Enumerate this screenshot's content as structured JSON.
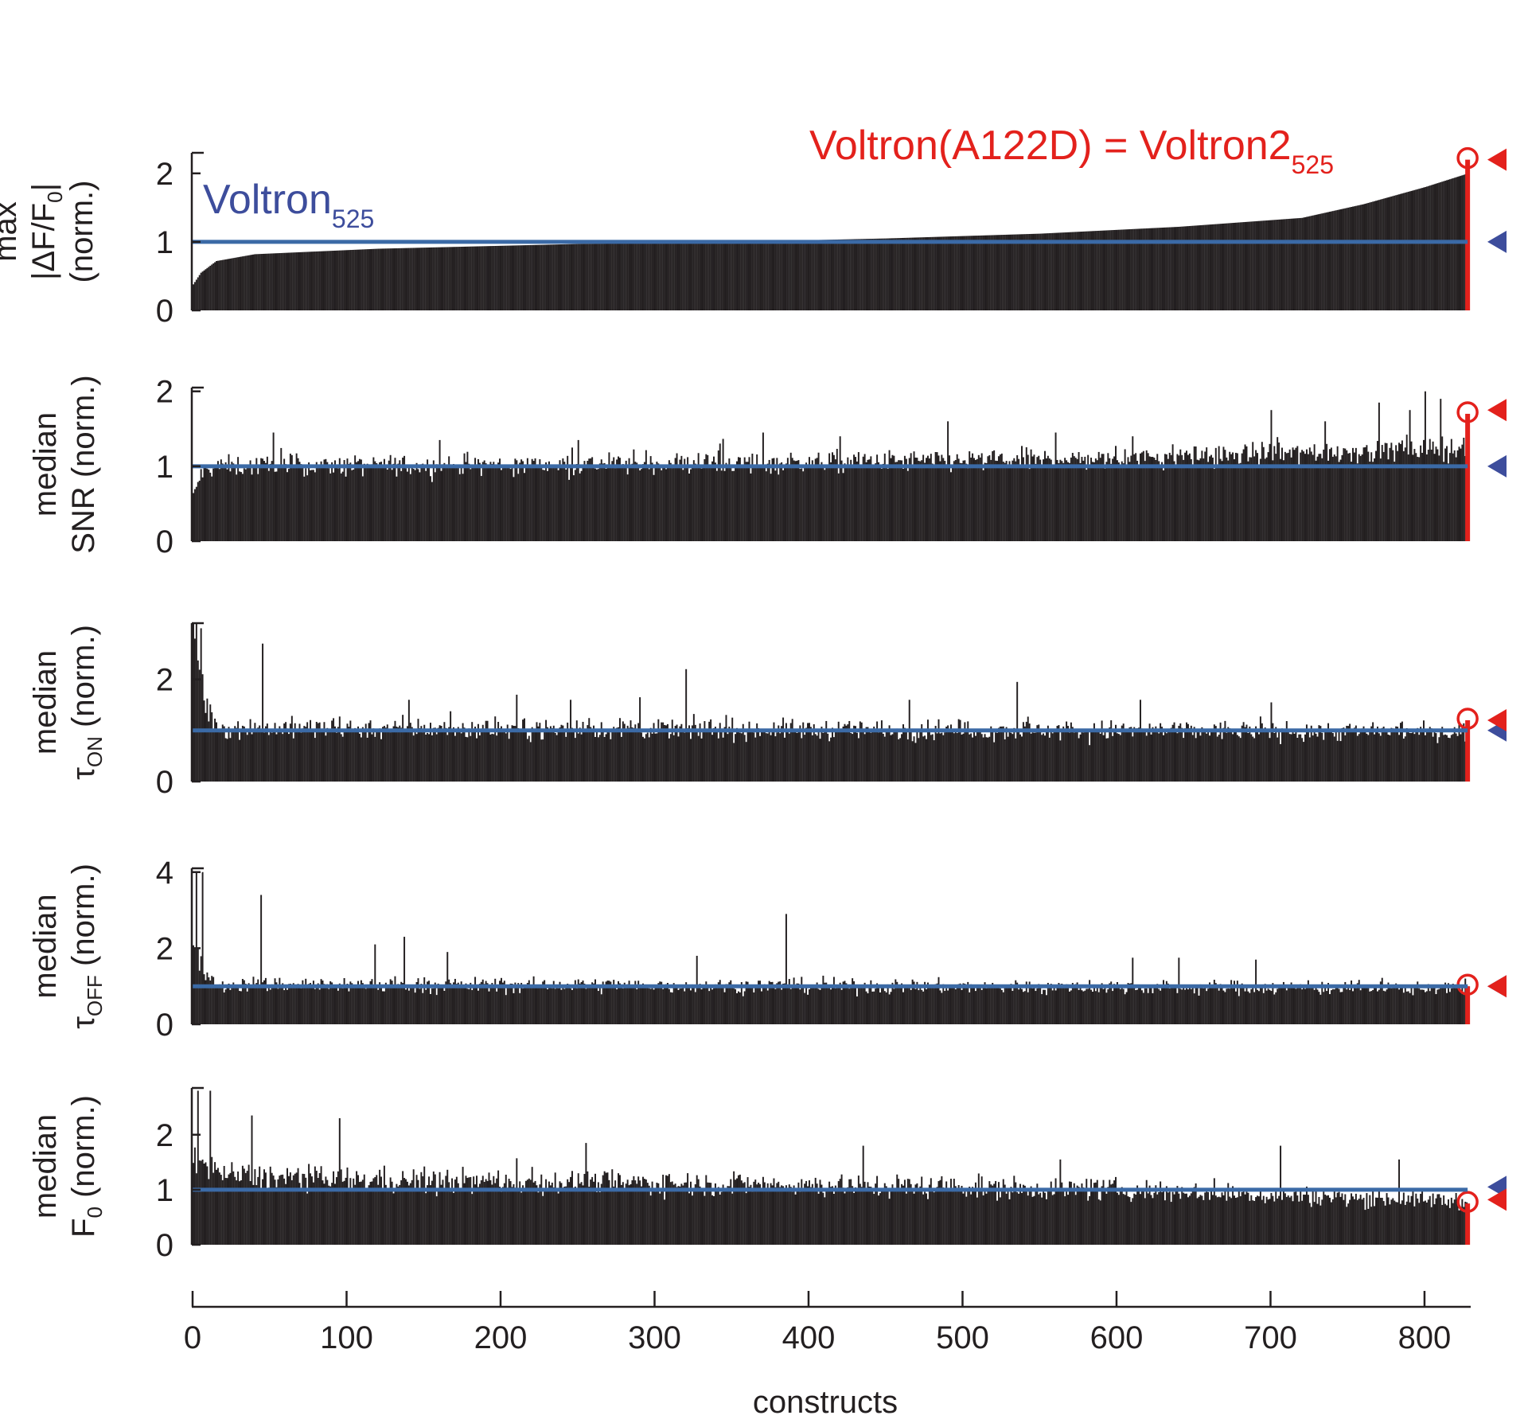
{
  "chart_data": {
    "type": "bar",
    "x_label": "constructs",
    "x_ticks": [
      0,
      100,
      200,
      300,
      400,
      500,
      600,
      700,
      800
    ],
    "x_range": [
      0,
      830
    ],
    "n_constructs": 828,
    "reference_line_value": 1,
    "annotations": {
      "reference": {
        "base": "Voltron",
        "sub": "525"
      },
      "highlight": {
        "base": "Voltron(A122D) = Voltron2",
        "sub": "525"
      }
    },
    "colors": {
      "bars": "#231f20",
      "reference": "#3d4d9c",
      "reference_line": "#3b6aa6",
      "highlight": "#e3211c"
    },
    "panels": [
      {
        "label_line1": "max",
        "label_line2_parts": [
          "|ΔF/F",
          "0",
          "|"
        ],
        "label_line3": "(norm.)",
        "y_ticks": [
          0,
          1,
          2
        ],
        "y_range": [
          0,
          2.3
        ],
        "sorted": true,
        "trend": [
          [
            0,
            0.38
          ],
          [
            5,
            0.55
          ],
          [
            15,
            0.72
          ],
          [
            40,
            0.82
          ],
          [
            120,
            0.9
          ],
          [
            250,
            0.97
          ],
          [
            350,
            1.0
          ],
          [
            450,
            1.05
          ],
          [
            550,
            1.12
          ],
          [
            640,
            1.22
          ],
          [
            720,
            1.35
          ],
          [
            760,
            1.55
          ],
          [
            800,
            1.8
          ],
          [
            828,
            2.0
          ]
        ],
        "noise": 0.0,
        "spikes": [],
        "highlight_value": 2.2,
        "marker_blue": 1,
        "marker_red": 2.2
      },
      {
        "label_line1": "median",
        "label_line2_parts": [
          "SNR (norm.)"
        ],
        "label_line3": "",
        "y_ticks": [
          0,
          1,
          2
        ],
        "y_range": [
          0,
          2.05
        ],
        "sorted": false,
        "trend": [
          [
            0,
            0.6
          ],
          [
            5,
            0.9
          ],
          [
            15,
            1.0
          ],
          [
            200,
            1.02
          ],
          [
            400,
            1.05
          ],
          [
            600,
            1.1
          ],
          [
            700,
            1.17
          ],
          [
            828,
            1.25
          ]
        ],
        "noise": 0.07,
        "spikes": [
          [
            52,
            1.45
          ],
          [
            160,
            1.35
          ],
          [
            250,
            1.35
          ],
          [
            370,
            1.45
          ],
          [
            420,
            1.4
          ],
          [
            490,
            1.6
          ],
          [
            560,
            1.45
          ],
          [
            610,
            1.4
          ],
          [
            700,
            1.75
          ],
          [
            735,
            1.6
          ],
          [
            770,
            1.85
          ],
          [
            790,
            1.75
          ],
          [
            800,
            2.0
          ],
          [
            810,
            1.9
          ]
        ],
        "highlight_value": 1.7,
        "marker_blue": 1,
        "marker_red": 1.75
      },
      {
        "label_line1": "median",
        "label_line2_parts": [
          "τ",
          "ON",
          " (norm.)"
        ],
        "label_line3": "",
        "y_ticks": [
          0,
          2
        ],
        "y_range": [
          0,
          3.1
        ],
        "sorted": false,
        "trend": [
          [
            0,
            3.0
          ],
          [
            3,
            2.5
          ],
          [
            8,
            1.5
          ],
          [
            15,
            1.05
          ],
          [
            828,
            0.98
          ]
        ],
        "noise": 0.1,
        "spikes": [
          [
            2,
            3.1
          ],
          [
            5,
            3.0
          ],
          [
            45,
            2.7
          ],
          [
            140,
            1.6
          ],
          [
            210,
            1.7
          ],
          [
            245,
            1.6
          ],
          [
            290,
            1.65
          ],
          [
            320,
            2.2
          ],
          [
            465,
            1.6
          ],
          [
            535,
            1.95
          ],
          [
            615,
            1.6
          ],
          [
            700,
            1.55
          ]
        ],
        "highlight_value": 1.2,
        "marker_blue": 1,
        "marker_red": 1.2
      },
      {
        "label_line1": "median",
        "label_line2_parts": [
          "τ",
          "OFF",
          " (norm.)"
        ],
        "label_line3": "",
        "y_ticks": [
          0,
          2,
          4
        ],
        "y_range": [
          0,
          4.1
        ],
        "sorted": false,
        "trend": [
          [
            0,
            2.3
          ],
          [
            5,
            1.5
          ],
          [
            15,
            1.05
          ],
          [
            828,
            0.95
          ]
        ],
        "noise": 0.1,
        "spikes": [
          [
            2,
            4.0
          ],
          [
            6,
            4.0
          ],
          [
            44,
            3.4
          ],
          [
            118,
            2.1
          ],
          [
            137,
            2.3
          ],
          [
            165,
            1.9
          ],
          [
            327,
            1.8
          ],
          [
            385,
            2.9
          ],
          [
            610,
            1.75
          ],
          [
            640,
            1.75
          ],
          [
            690,
            1.7
          ]
        ],
        "highlight_value": 1.0,
        "marker_blue": 1,
        "marker_red": 1.0
      },
      {
        "label_line1": "median",
        "label_line2_parts": [
          "F",
          "0",
          " (norm.)"
        ],
        "label_line3": "",
        "y_ticks": [
          0,
          1,
          2
        ],
        "y_range": [
          0,
          2.85
        ],
        "sorted": false,
        "trend": [
          [
            0,
            1.7
          ],
          [
            10,
            1.35
          ],
          [
            30,
            1.25
          ],
          [
            100,
            1.18
          ],
          [
            300,
            1.12
          ],
          [
            500,
            1.05
          ],
          [
            600,
            1.0
          ],
          [
            700,
            0.9
          ],
          [
            828,
            0.8
          ]
        ],
        "noise": 0.1,
        "spikes": [
          [
            3,
            2.8
          ],
          [
            11,
            2.8
          ],
          [
            38,
            2.35
          ],
          [
            95,
            2.3
          ],
          [
            255,
            1.85
          ],
          [
            435,
            1.8
          ],
          [
            563,
            1.55
          ],
          [
            706,
            1.8
          ],
          [
            783,
            1.55
          ]
        ],
        "highlight_value": 0.75,
        "marker_blue": 1.05,
        "marker_red": 0.82
      }
    ]
  }
}
